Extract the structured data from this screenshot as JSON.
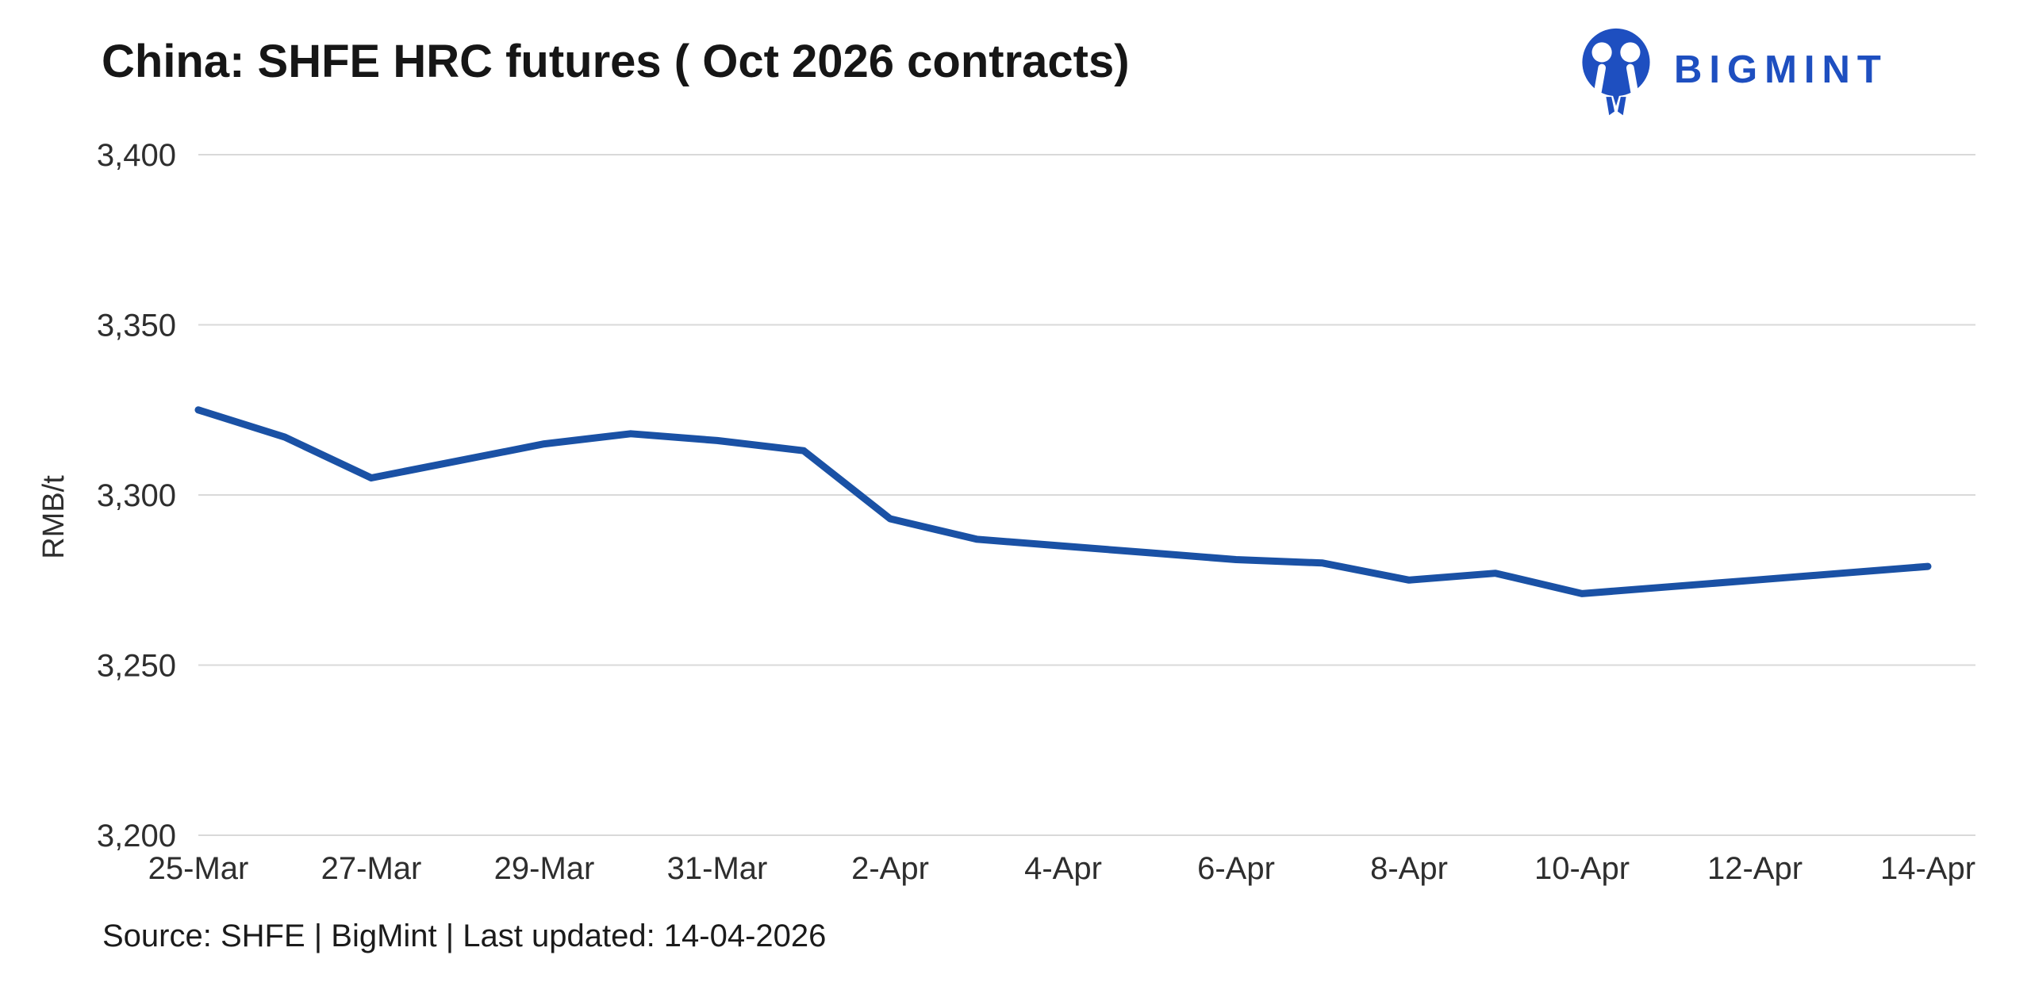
{
  "header": {
    "title": "China: SHFE HRC futures ( Oct 2026 contracts)",
    "logo_text": "BIGMINT"
  },
  "footer": {
    "source_text": "Source: SHFE | BigMint | Last updated: 14-04-2026"
  },
  "colors": {
    "line": "#1a51a5",
    "logo_blue": "#1e4fc0",
    "gridline": "#d9d9d9",
    "title_text": "#161616",
    "tick_text": "#2e2e2e"
  },
  "chart_data": {
    "type": "line",
    "title": "China: SHFE HRC futures ( Oct 2026 contracts)",
    "xlabel": "",
    "ylabel": "RMB/t",
    "ylim": [
      3200,
      3400
    ],
    "y_ticks": [
      3400,
      3350,
      3300,
      3250,
      3200
    ],
    "y_tick_labels": [
      "3,400",
      "3,350",
      "3,300",
      "3,250",
      "3,200"
    ],
    "x": [
      "25-Mar",
      "26-Mar",
      "27-Mar",
      "28-Mar",
      "29-Mar",
      "30-Mar",
      "31-Mar",
      "1-Apr",
      "2-Apr",
      "3-Apr",
      "4-Apr",
      "5-Apr",
      "6-Apr",
      "7-Apr",
      "8-Apr",
      "9-Apr",
      "10-Apr",
      "11-Apr",
      "12-Apr",
      "13-Apr",
      "14-Apr"
    ],
    "x_tick_every": 2,
    "x_tick_labels": [
      "25-Mar",
      "27-Mar",
      "29-Mar",
      "31-Mar",
      "2-Apr",
      "4-Apr",
      "6-Apr",
      "8-Apr",
      "10-Apr",
      "12-Apr",
      "14-Apr"
    ],
    "grid": "horizontal",
    "legend": "none",
    "series": [
      {
        "name": "SHFE HRC futures (Oct 2026 contract)",
        "values": [
          3325,
          3317,
          3305,
          3310,
          3315,
          3318,
          3316,
          3313,
          3293,
          3287,
          3285,
          3283,
          3281,
          3280,
          3275,
          3277,
          3271,
          3273,
          3275,
          3277,
          3279
        ]
      }
    ]
  }
}
